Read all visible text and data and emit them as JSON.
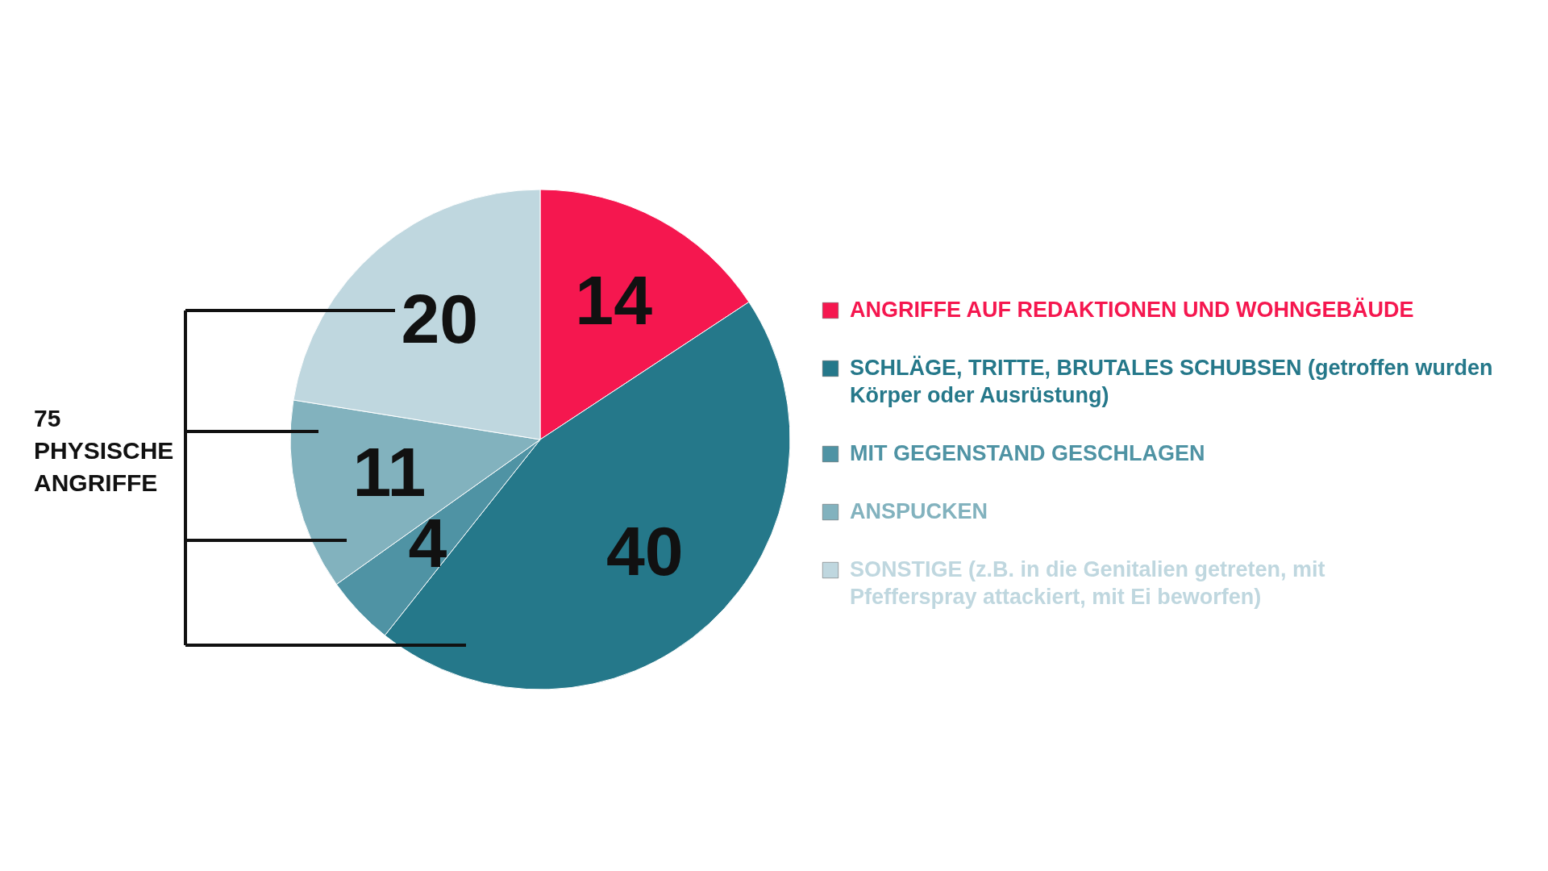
{
  "chart_data": {
    "type": "pie",
    "categories": [
      "ANGRIFFE AUF REDAKTIONEN UND WOHNGEBÄUDE",
      "SCHLÄGE, TRITTE, BRUTALES SCHUBSEN (getroffen wurden Körper oder Ausrüstung)",
      "MIT GEGENSTAND GESCHLAGEN",
      "ANSPUCKEN",
      "SONSTIGE (z.B. in die Genitalien getreten, mit Pfefferspray attackiert, mit Ei beworfen)"
    ],
    "values": [
      14,
      40,
      4,
      11,
      20
    ],
    "colors": [
      "#f5174f",
      "#25788a",
      "#4f93a4",
      "#82b2be",
      "#bfd7df"
    ],
    "data_labels": true,
    "legend": "right",
    "annotations": [
      "75 PHYSISCHE ANGRIFFE"
    ]
  }
}
